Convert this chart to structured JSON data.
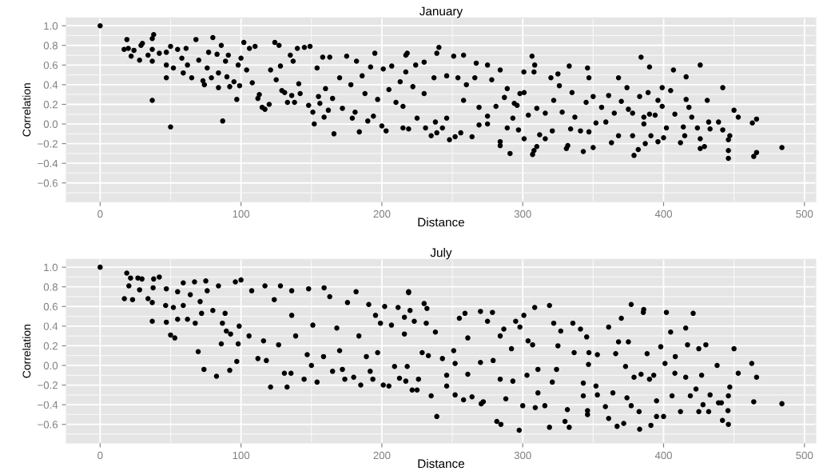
{
  "chart_data": [
    {
      "type": "scatter",
      "title": "January",
      "xlabel": "Distance",
      "ylabel": "Correlation",
      "marker": "circle",
      "grid": true,
      "xlim": [
        -24,
        508
      ],
      "ylim": [
        -0.79,
        1.08
      ],
      "xticks": [
        0,
        {
          "value": 50,
          "label": null
        },
        100,
        {
          "value": 150,
          "label": null
        },
        200,
        {
          "value": 250,
          "label": null
        },
        300,
        {
          "value": 350,
          "label": null
        },
        400,
        {
          "value": 450,
          "label": null
        },
        500
      ],
      "yticks": [
        {
          "value": -0.7,
          "label": null
        },
        {
          "value": -0.6,
          "label": "−0.6"
        },
        {
          "value": -0.5,
          "label": null
        },
        {
          "value": -0.4,
          "label": "−0.4"
        },
        {
          "value": -0.3,
          "label": null
        },
        {
          "value": -0.2,
          "label": "−0.2"
        },
        {
          "value": -0.1,
          "label": null
        },
        {
          "value": 0,
          "label": "0.0"
        },
        {
          "value": 0.1,
          "label": null
        },
        {
          "value": 0.2,
          "label": "0.2"
        },
        {
          "value": 0.3,
          "label": null
        },
        {
          "value": 0.4,
          "label": "0.4"
        },
        {
          "value": 0.5,
          "label": null
        },
        {
          "value": 0.6,
          "label": "0.6"
        },
        {
          "value": 0.7,
          "label": null
        },
        {
          "value": 0.8,
          "label": "0.8"
        },
        {
          "value": 0.9,
          "label": null
        },
        {
          "value": 1.0,
          "label": "1.0"
        }
      ],
      "x": [
        0,
        19,
        17,
        20,
        22,
        24,
        28,
        29,
        30,
        34,
        37,
        37,
        38,
        37,
        37,
        42,
        47,
        47,
        47,
        50,
        50,
        52,
        55,
        58,
        59,
        61,
        62,
        65,
        68,
        70,
        73,
        74,
        76,
        77,
        79,
        80,
        83,
        84,
        84,
        86,
        87,
        89,
        90,
        91,
        92,
        95,
        97,
        98,
        99,
        100,
        102,
        104,
        106,
        108,
        110,
        112,
        113,
        115,
        117,
        120,
        121,
        124,
        125,
        127,
        128,
        129,
        131,
        133,
        135,
        136,
        137,
        138,
        140,
        141,
        142,
        145,
        148,
        149,
        151,
        152,
        154,
        155,
        156,
        158,
        159,
        160,
        162,
        163,
        165,
        166,
        170,
        172,
        175,
        178,
        179,
        181,
        182,
        184,
        186,
        188,
        190,
        192,
        194,
        195,
        197,
        200,
        201,
        203,
        205,
        207,
        210,
        213,
        215,
        217,
        219,
        222,
        218,
        240.5,
        239,
        251,
        258,
        267,
        275,
        284,
        306.6,
        308.5,
        308,
        300.8,
        333,
        346,
        347,
        384,
        390,
        407,
        426,
        416,
        442,
        450,
        453,
        466,
        463,
        484,
        466,
        464,
        446,
        446,
        446,
        447,
        442,
        439,
        432,
        431,
        426,
        426,
        429,
        420,
        416,
        418,
        415,
        412,
        408,
        405,
        399,
        399,
        396,
        400,
        396,
        387,
        382,
        379,
        378,
        386,
        390,
        389,
        383,
        374,
        368,
        375,
        370,
        361,
        359,
        363,
        368,
        352,
        350,
        347,
        345,
        350,
        343,
        341,
        335,
        332,
        331,
        326,
        325,
        320,
        322,
        321,
        316,
        312,
        307,
        308,
        310,
        301,
        304,
        291,
        284,
        284,
        289,
        297,
        293,
        296,
        298,
        289,
        278,
        275,
        269,
        264,
        256,
        248,
        252,
        243,
        239,
        235,
        231,
        225,
        215,
        230,
        217,
        224,
        230,
        237,
        246,
        254,
        260,
        266,
        258,
        246,
        238,
        275,
        281,
        269,
        287,
        294,
        301,
        310,
        316,
        328,
        337,
        334,
        356,
        365,
        378,
        386,
        394,
        402,
        391,
        414,
        424,
        433
      ],
      "series": [
        {
          "color": "#000000",
          "values": [
            1.0,
            0.86,
            0.76,
            0.77,
            0.69,
            0.75,
            0.65,
            0.8,
            0.82,
            0.7,
            0.64,
            0.87,
            0.91,
            0.24,
            0.76,
            0.72,
            0.6,
            0.47,
            0.73,
            0.79,
            -0.03,
            0.57,
            0.76,
            0.67,
            0.52,
            0.77,
            0.6,
            0.47,
            0.86,
            0.65,
            0.44,
            0.4,
            0.57,
            0.73,
            0.47,
            0.88,
            0.71,
            0.37,
            0.52,
            0.8,
            0.03,
            0.64,
            0.48,
            0.7,
            0.38,
            0.43,
            0.25,
            0.6,
            0.39,
            0.67,
            0.83,
            0.55,
            0.77,
            0.42,
            0.79,
            0.26,
            0.3,
            0.17,
            0.15,
            0.2,
            0.55,
            0.83,
            0.45,
            0.8,
            0.59,
            0.34,
            0.32,
            0.22,
            0.7,
            0.29,
            0.64,
            0.22,
            0.77,
            0.41,
            0.31,
            0.78,
            0.19,
            0.79,
            0.12,
            0.0,
            0.57,
            0.28,
            0.21,
            0.68,
            0.07,
            0.36,
            0.14,
            0.68,
            0.26,
            -0.1,
            0.47,
            0.16,
            0.69,
            0.4,
            0.06,
            0.12,
            0.64,
            -0.08,
            0.49,
            0.31,
            0.03,
            0.58,
            0.08,
            0.72,
            0.25,
            -0.02,
            0.56,
            -0.07,
            0.35,
            0.59,
            0.22,
            0.43,
            0.18,
            0.7,
            -0.05,
            0.38,
            0.72,
            0.78,
            0.72,
            0.69,
            0.7,
            0.62,
            0.6,
            0.55,
            0.69,
            0.6,
            0.53,
            0.53,
            0.59,
            0.57,
            0.47,
            0.68,
            0.58,
            0.55,
            0.6,
            0.48,
            0.37,
            0.14,
            0.07,
            0.05,
            0.01,
            -0.24,
            -0.29,
            -0.33,
            -0.35,
            -0.27,
            -0.16,
            -0.12,
            -0.06,
            0.02,
            0.02,
            0.24,
            -0.15,
            -0.25,
            -0.23,
            0.07,
            0.25,
            0.17,
            -0.12,
            -0.19,
            0.1,
            0.34,
            0.37,
            0.18,
            0.24,
            -0.14,
            -0.18,
            -0.2,
            -0.26,
            -0.32,
            -0.12,
            0.0,
            0.1,
            0.32,
            0.28,
            0.37,
            0.47,
            0.15,
            0.23,
            0.29,
            0.02,
            -0.19,
            -0.12,
            0.01,
            -0.24,
            -0.08,
            0.22,
            0.28,
            -0.28,
            -0.07,
            0.32,
            -0.22,
            -0.25,
            0.39,
            0.51,
            0.47,
            0.24,
            -0.07,
            -0.15,
            -0.11,
            -0.31,
            -0.27,
            -0.23,
            -0.15,
            0.09,
            -0.3,
            -0.22,
            -0.18,
            -0.04,
            -0.06,
            0.06,
            0.19,
            0.31,
            0.36,
            0.45,
            0.0,
            -0.01,
            -0.13,
            -0.09,
            -0.16,
            -0.13,
            -0.04,
            -0.09,
            -0.12,
            -0.04,
            0.06,
            -0.04,
            0.31,
            0.53,
            0.6,
            0.63,
            0.47,
            0.49,
            0.47,
            0.4,
            0.47,
            0.24,
            0.06,
            0.02,
            0.08,
            0.18,
            0.17,
            0.27,
            0.21,
            0.32,
            0.16,
            0.11,
            0.12,
            0.07,
            -0.05,
            0.17,
            0.11,
            0.11,
            0.07,
            0.09,
            -0.04,
            -0.12,
            -0.03,
            -0.04,
            -0.05
          ]
        }
      ]
    },
    {
      "type": "scatter",
      "title": "July",
      "xlabel": "Distance",
      "ylabel": "Correlation",
      "marker": "circle",
      "grid": true,
      "xlim": [
        -24,
        508
      ],
      "ylim": [
        -0.79,
        1.08
      ],
      "xticks": [
        0,
        {
          "value": 50,
          "label": null
        },
        100,
        {
          "value": 150,
          "label": null
        },
        200,
        {
          "value": 250,
          "label": null
        },
        300,
        {
          "value": 350,
          "label": null
        },
        400,
        {
          "value": 450,
          "label": null
        },
        500
      ],
      "yticks": [
        {
          "value": -0.7,
          "label": null
        },
        {
          "value": -0.6,
          "label": "−0.6"
        },
        {
          "value": -0.5,
          "label": null
        },
        {
          "value": -0.4,
          "label": "−0.4"
        },
        {
          "value": -0.3,
          "label": null
        },
        {
          "value": -0.2,
          "label": "−0.2"
        },
        {
          "value": -0.1,
          "label": null
        },
        {
          "value": 0,
          "label": "0.0"
        },
        {
          "value": 0.1,
          "label": null
        },
        {
          "value": 0.2,
          "label": "0.2"
        },
        {
          "value": 0.3,
          "label": null
        },
        {
          "value": 0.4,
          "label": "0.4"
        },
        {
          "value": 0.5,
          "label": null
        },
        {
          "value": 0.6,
          "label": "0.6"
        },
        {
          "value": 0.7,
          "label": null
        },
        {
          "value": 0.8,
          "label": "0.8"
        },
        {
          "value": 0.9,
          "label": null
        },
        {
          "value": 1.0,
          "label": "1.0"
        }
      ],
      "x": [
        0,
        18.9,
        17.2,
        20.4,
        21.6,
        23,
        26.8,
        28,
        29.7,
        34,
        37,
        37,
        38,
        37.6,
        42,
        47,
        47,
        46.5,
        50,
        53,
        52,
        55,
        55,
        59,
        59,
        62,
        64,
        67,
        67.5,
        69.6,
        71,
        72,
        73.7,
        75,
        76,
        80,
        82.6,
        84,
        86.8,
        86,
        88.7,
        89.6,
        92,
        92.6,
        96,
        97,
        98,
        100,
        98.7,
        105.7,
        107.6,
        112,
        118,
        117,
        116,
        121,
        123.6,
        126.7,
        128,
        130.8,
        132.7,
        135.5,
        136,
        136,
        138.8,
        144.8,
        148,
        150,
        147,
        154,
        151,
        159,
        158.6,
        163,
        165,
        168,
        170,
        172,
        173.7,
        175.6,
        180,
        181.7,
        183.7,
        185,
        189,
        190.7,
        191.7,
        193.6,
        195.5,
        197,
        199,
        201,
        202,
        205,
        206.8,
        209,
        211.5,
        212.5,
        216,
        217,
        219,
        221.5,
        219,
        230,
        232,
        220,
        223,
        231.5,
        238,
        216,
        228.6,
        235,
        239,
        226,
        225,
        246,
        251,
        252,
        255,
        259,
        258,
        264,
        261,
        270,
        275,
        278.5,
        270.5,
        272,
        281.6,
        284.5,
        284,
        286.6,
        292,
        295,
        298,
        297.5,
        300,
        300.8,
        303.8,
        308.5,
        307,
        308.9,
        310.8,
        315.7,
        319,
        319,
        322,
        321,
        325,
        327,
        330,
        331.7,
        333,
        335.6,
        336.5,
        341,
        343,
        346,
        346,
        345.4,
        346.7,
        347,
        353,
        353,
        358.7,
        361,
        361,
        366,
        367,
        368,
        370,
        371.7,
        373,
        375,
        377,
        377,
        379,
        383,
        382.6,
        385.6,
        385.9,
        388.3,
        391,
        390,
        395,
        395,
        398,
        402,
        400,
        405,
        406,
        408.3,
        408,
        412,
        415.7,
        415.7,
        417,
        419,
        421,
        425,
        425,
        427,
        428,
        430,
        432,
        433,
        438,
        441,
        441.8,
        446,
        446,
        447,
        445.7,
        450,
        453,
        462.6,
        466,
        464,
        484,
        439,
        423,
        401,
        393,
        384,
        374,
        364,
        352,
        343,
        324,
        310.8,
        303,
        293,
        288,
        284,
        279,
        270,
        261,
        252,
        243,
        233,
        218,
        246
      ],
      "series": [
        {
          "color": "#000000",
          "values": [
            1.0,
            0.94,
            0.68,
            0.81,
            0.89,
            0.67,
            0.89,
            0.77,
            0.88,
            0.68,
            0.64,
            0.45,
            0.88,
            0.79,
            0.9,
            0.78,
            0.44,
            0.61,
            0.31,
            0.28,
            0.59,
            0.75,
            0.47,
            0.84,
            0.61,
            0.47,
            0.72,
            0.85,
            0.43,
            0.14,
            0.65,
            0.53,
            -0.04,
            0.86,
            0.76,
            0.56,
            -0.11,
            0.81,
            0.43,
            0.22,
            0.53,
            0.35,
            -0.05,
            0.32,
            0.85,
            0.04,
            0.22,
            0.87,
            0.4,
            0.3,
            0.76,
            0.07,
            0.05,
            0.81,
            0.25,
            -0.22,
            0.67,
            0.21,
            0.81,
            -0.08,
            -0.22,
            -0.08,
            0.51,
            0.76,
            0.3,
            -0.14,
            0.78,
            0.0,
            0.11,
            -0.17,
            0.41,
            0.79,
            0.09,
            0.7,
            -0.06,
            0.38,
            0.15,
            -0.04,
            -0.14,
            0.64,
            -0.12,
            0.75,
            0.3,
            -0.2,
            0.09,
            0.62,
            -0.06,
            -0.14,
            0.51,
            0.13,
            0.43,
            -0.2,
            0.6,
            -0.21,
            0.41,
            -0.01,
            0.59,
            -0.13,
            0.49,
            -0.16,
            0.74,
            -0.25,
            0.75,
            0.63,
            0.58,
            0.56,
            0.45,
            0.43,
            0.34,
            0.32,
            0.13,
            -0.31,
            -0.52,
            -0.14,
            -0.25,
            -0.21,
            0.15,
            -0.3,
            0.48,
            0.53,
            -0.35,
            -0.32,
            0.28,
            0.55,
            0.45,
            0.54,
            -0.39,
            -0.37,
            -0.57,
            -0.6,
            0.3,
            0.37,
            0.17,
            0.45,
            0.39,
            -0.66,
            -0.41,
            0.51,
            0.25,
            0.59,
            0.21,
            -0.43,
            -0.28,
            -0.41,
            0.61,
            -0.63,
            0.43,
            -0.17,
            0.2,
            0.35,
            -0.57,
            -0.45,
            -0.63,
            0.43,
            0.13,
            0.37,
            -0.18,
            -0.5,
            -0.46,
            0.29,
            0.01,
            0.13,
            0.11,
            -0.3,
            -0.42,
            -0.54,
            0.39,
            0.12,
            -0.62,
            0.24,
            0.48,
            -0.59,
            -0.01,
            0.24,
            0.62,
            -0.41,
            -0.12,
            -0.65,
            -0.47,
            0.54,
            0.57,
            0.12,
            -0.61,
            -0.14,
            -0.52,
            -0.36,
            0.19,
            0.54,
            -0.52,
            0.34,
            -0.31,
            0.09,
            -0.08,
            -0.47,
            0.38,
            -0.12,
            0.21,
            -0.31,
            0.53,
            0.17,
            -0.47,
            -0.1,
            -0.4,
            0.21,
            -0.47,
            -0.3,
            0.0,
            -0.38,
            -0.56,
            -0.6,
            -0.31,
            -0.22,
            -0.46,
            0.17,
            -0.08,
            0.02,
            -0.12,
            -0.37,
            -0.39,
            -0.38,
            -0.24,
            0.02,
            -0.1,
            -0.09,
            -0.33,
            -0.28,
            -0.21,
            -0.31,
            -0.04,
            -0.04,
            -0.1,
            -0.16,
            -0.34,
            -0.14,
            0.05,
            0.03,
            -0.09,
            0.02,
            0.07,
            0.1,
            -0.01,
            -0.1
          ]
        }
      ]
    }
  ]
}
